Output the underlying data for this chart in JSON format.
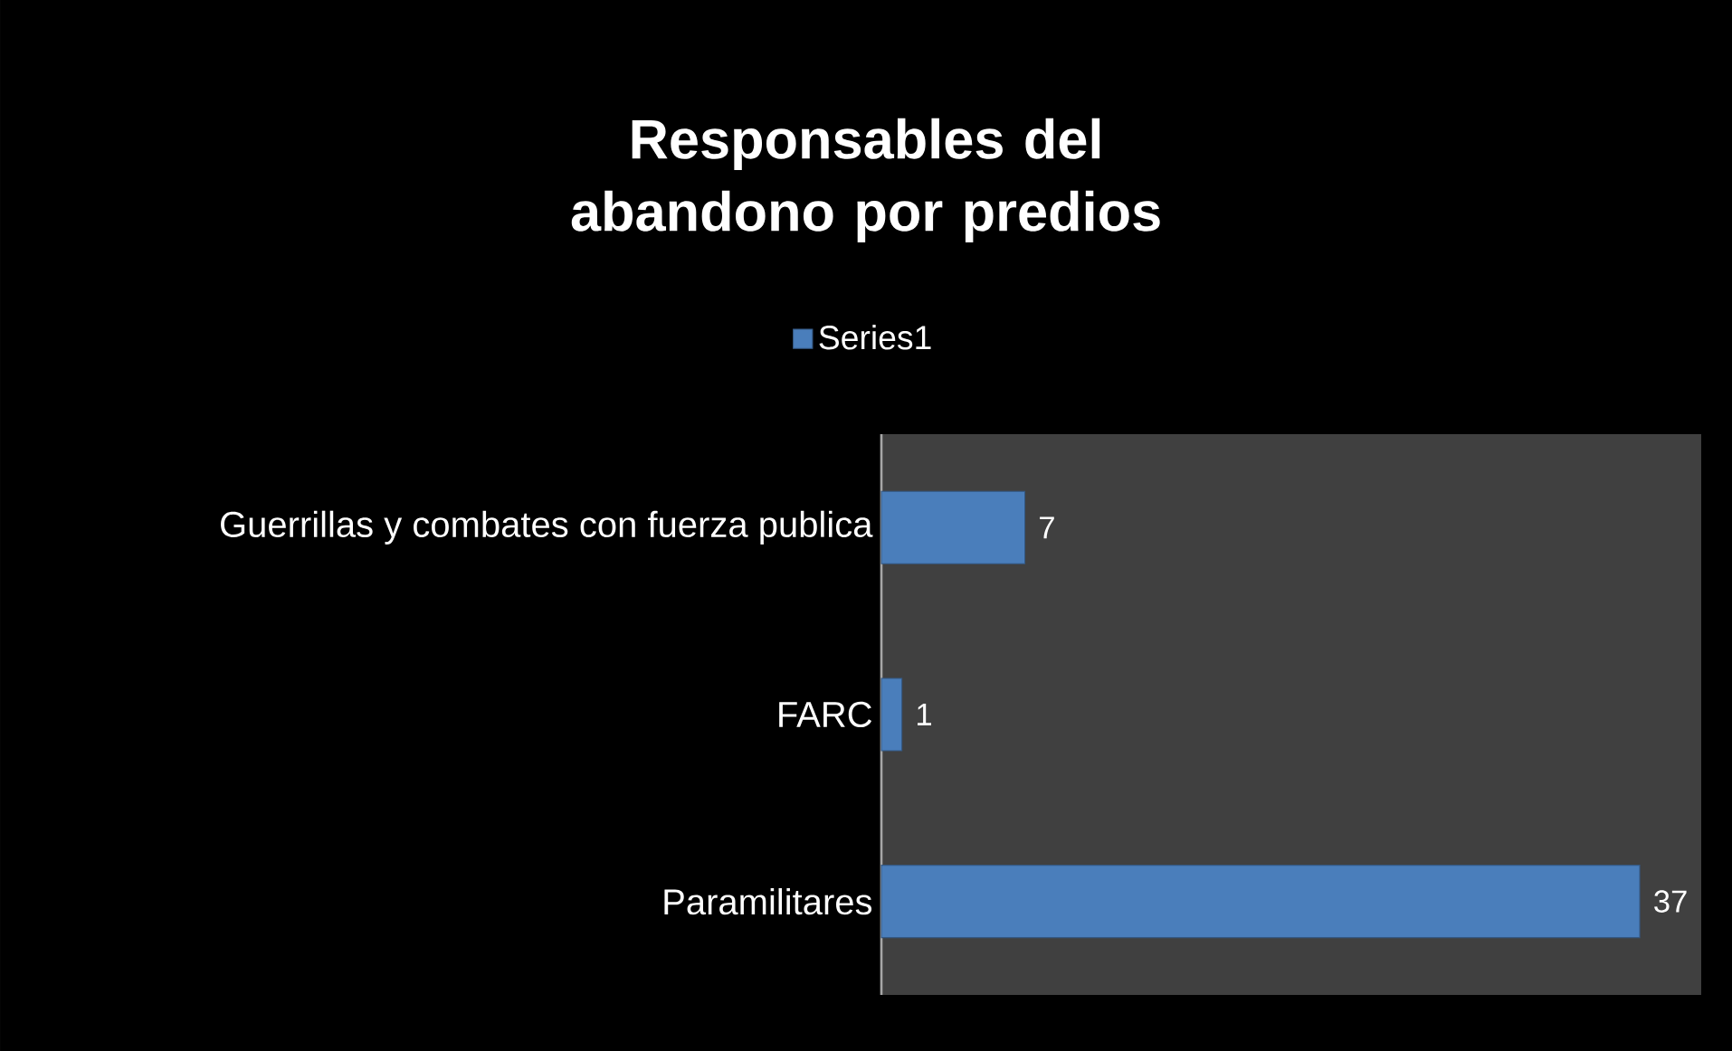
{
  "chart_data": {
    "type": "bar",
    "orientation": "horizontal",
    "title": "Responsables del abandono por predios",
    "categories": [
      "Guerrillas y combates con fuerza publica",
      "FARC",
      "Paramilitares"
    ],
    "series": [
      {
        "name": "Series1",
        "color": "#4a7ebb",
        "values": [
          7,
          1,
          37
        ]
      }
    ],
    "xlim": [
      0,
      40
    ],
    "data_labels": true,
    "legend": "top"
  }
}
